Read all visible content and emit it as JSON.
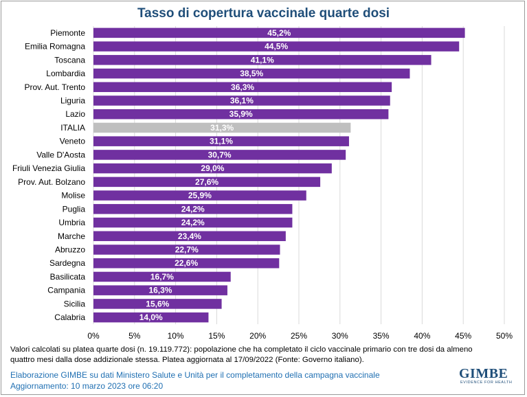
{
  "title": "Tasso di copertura vaccinale quarte dosi",
  "chart_data": {
    "type": "bar",
    "orientation": "horizontal",
    "categories": [
      "Piemonte",
      "Emilia Romagna",
      "Toscana",
      "Lombardia",
      "Prov. Aut. Trento",
      "Liguria",
      "Lazio",
      "ITALIA",
      "Veneto",
      "Valle D'Aosta",
      "Friuli Venezia Giulia",
      "Prov. Aut. Bolzano",
      "Molise",
      "Puglia",
      "Umbria",
      "Marche",
      "Abruzzo",
      "Sardegna",
      "Basilicata",
      "Campania",
      "Sicilia",
      "Calabria"
    ],
    "values": [
      45.2,
      44.5,
      41.1,
      38.5,
      36.3,
      36.1,
      35.9,
      31.3,
      31.1,
      30.7,
      29.0,
      27.6,
      25.9,
      24.2,
      24.2,
      23.4,
      22.7,
      22.6,
      16.7,
      16.3,
      15.6,
      14.0
    ],
    "value_labels": [
      "45,2%",
      "44,5%",
      "41,1%",
      "38,5%",
      "36,3%",
      "36,1%",
      "35,9%",
      "31,3%",
      "31,1%",
      "30,7%",
      "29,0%",
      "27,6%",
      "25,9%",
      "24,2%",
      "24,2%",
      "23,4%",
      "22,7%",
      "22,6%",
      "16,7%",
      "16,3%",
      "15,6%",
      "14,0%"
    ],
    "xlim": [
      0,
      50
    ],
    "xticks": [
      0,
      5,
      10,
      15,
      20,
      25,
      30,
      35,
      40,
      45,
      50
    ],
    "xtick_labels": [
      "0%",
      "5%",
      "10%",
      "15%",
      "20%",
      "25%",
      "30%",
      "35%",
      "40%",
      "45%",
      "50%"
    ],
    "grid": "vertical",
    "colors": {
      "bar": "#7030a0",
      "highlight": "#bfbfbf",
      "grid": "#d9d9d9",
      "value_text": "#ffffff"
    },
    "highlight_category": "ITALIA"
  },
  "footnote": {
    "line1": "Valori calcolati su platea quarte dosi (n. 19.119.772): popolazione che ha completato il ciclo vaccinale primario con tre dosi da almeno",
    "line2": "quattro mesi dalla dose addizionale stessa. Platea aggiornata al 17/09/2022 (Fonte: Governo italiano)."
  },
  "credit": {
    "line1": "Elaborazione GIMBE su dati Ministero Salute e Unità per il completamento della campagna vaccinale",
    "line2": "Aggiornamento: 10 marzo 2023 ore 06:20"
  },
  "logo": {
    "name": "GIMBE",
    "tagline": "EVIDENCE FOR HEALTH"
  }
}
